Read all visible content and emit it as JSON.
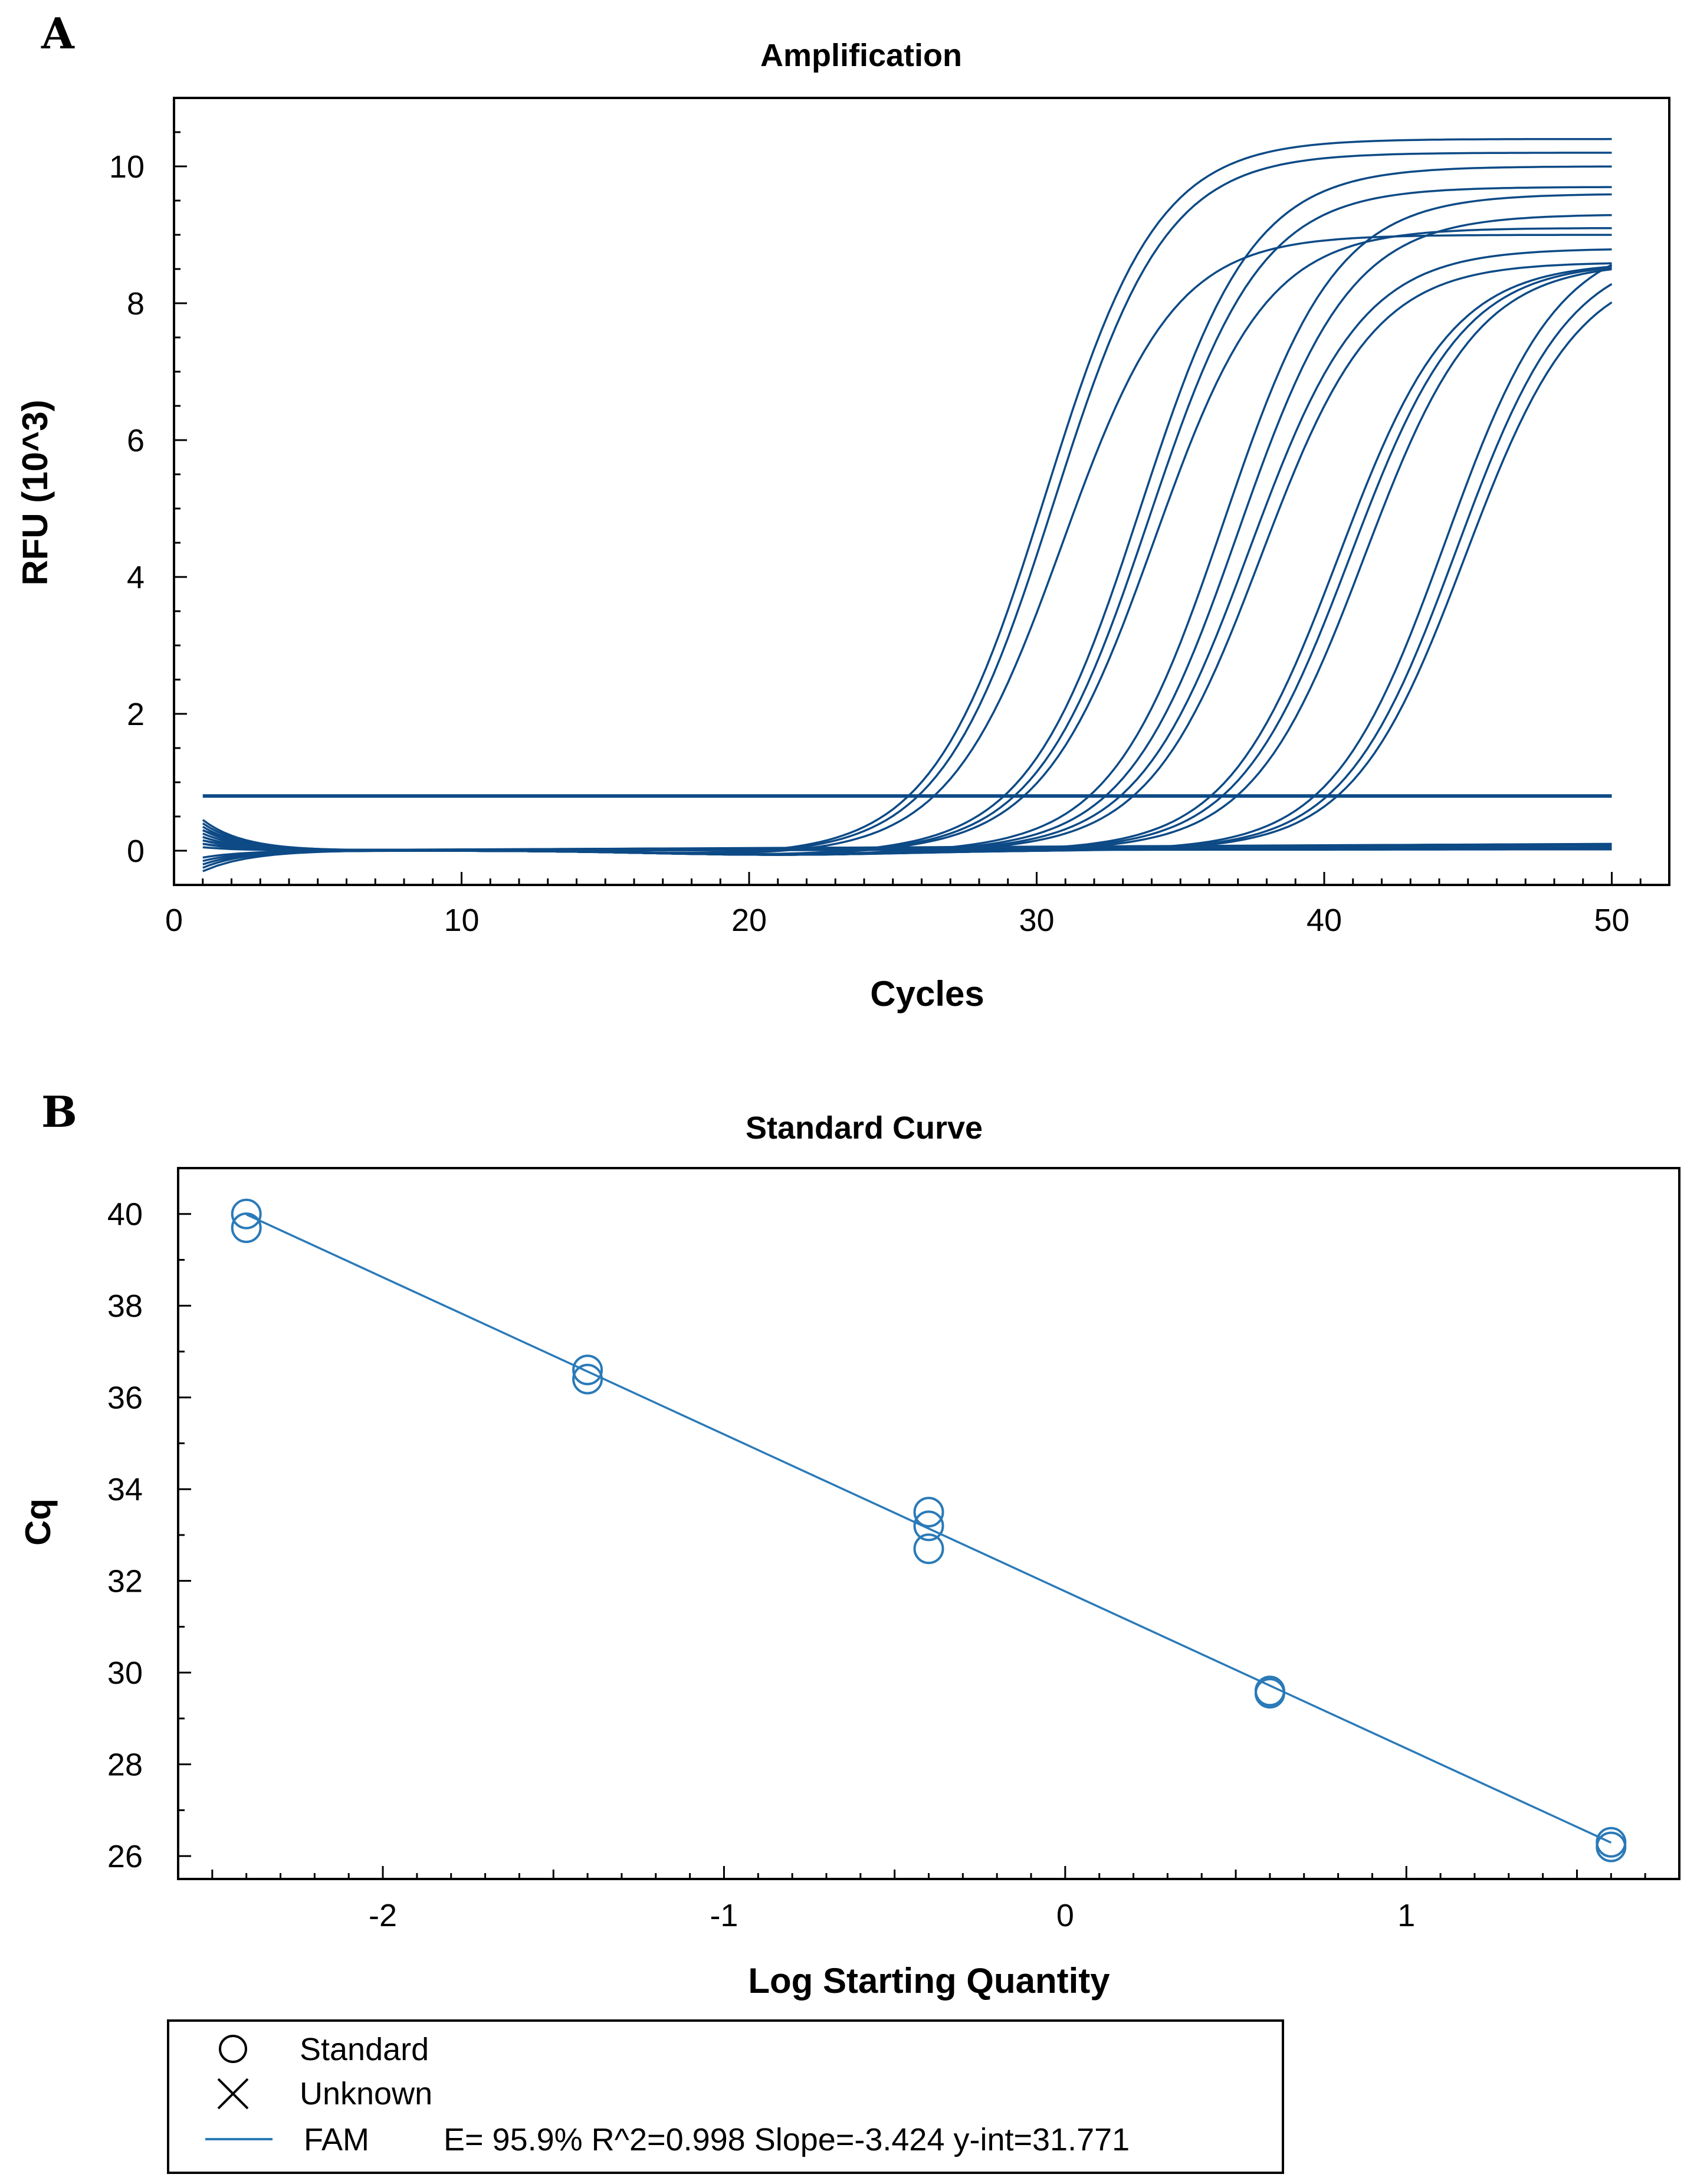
{
  "figure": {
    "panel_a_letter": "A",
    "panel_b_letter": "B"
  },
  "chart_data": [
    {
      "type": "line",
      "title": "Amplification",
      "xlabel": "Cycles",
      "ylabel": "RFU (10^3)",
      "xlim": [
        0,
        52
      ],
      "ylim": [
        -0.5,
        11
      ],
      "xticks": [
        "0",
        "10",
        "20",
        "30",
        "40",
        "50"
      ],
      "yticks": [
        "0",
        "2",
        "4",
        "6",
        "8",
        "10"
      ],
      "threshold": 0.8,
      "line_color": "#0d4a86",
      "series": [
        {
          "midpoint": 30.3,
          "plateau": 10.4
        },
        {
          "midpoint": 30.6,
          "plateau": 10.2
        },
        {
          "midpoint": 30.9,
          "plateau": 9.0
        },
        {
          "midpoint": 33.6,
          "plateau": 10.0
        },
        {
          "midpoint": 33.9,
          "plateau": 9.7
        },
        {
          "midpoint": 34.1,
          "plateau": 9.1
        },
        {
          "midpoint": 36.5,
          "plateau": 9.6
        },
        {
          "midpoint": 37.0,
          "plateau": 9.3
        },
        {
          "midpoint": 37.4,
          "plateau": 8.8
        },
        {
          "midpoint": 37.8,
          "plateau": 8.6
        },
        {
          "midpoint": 40.5,
          "plateau": 8.6
        },
        {
          "midpoint": 40.9,
          "plateau": 8.6
        },
        {
          "midpoint": 41.4,
          "plateau": 8.6
        },
        {
          "midpoint": 44.2,
          "plateau": 9.0
        },
        {
          "midpoint": 44.6,
          "plateau": 8.8
        },
        {
          "midpoint": 44.9,
          "plateau": 8.6
        }
      ]
    },
    {
      "type": "scatter",
      "title": "Standard Curve",
      "xlabel": "Log Starting Quantity",
      "ylabel": "Cq",
      "xlim": [
        -2.6,
        1.8
      ],
      "ylim": [
        25.5,
        41
      ],
      "xticks": [
        "-2",
        "-1",
        "0",
        "1"
      ],
      "yticks": [
        "26",
        "28",
        "30",
        "32",
        "34",
        "36",
        "38",
        "40"
      ],
      "line_color": "#2a7ab8",
      "series": [
        {
          "name": "Standard",
          "x": [
            -2.4,
            -2.4,
            -1.4,
            -1.4,
            -0.4,
            -0.4,
            -0.4,
            0.6,
            0.6,
            1.6,
            1.6
          ],
          "y": [
            40.0,
            39.7,
            36.6,
            36.4,
            33.5,
            33.2,
            32.7,
            29.6,
            29.55,
            26.3,
            26.2
          ]
        }
      ],
      "fit": {
        "slope": -3.424,
        "intercept": 31.771
      },
      "legend": {
        "standard_label": "Standard",
        "unknown_label": "Unknown",
        "fam_label": "FAM",
        "fam_stats": "E= 95.9% R^2=0.998 Slope=-3.424 y-int=31.771"
      }
    }
  ]
}
